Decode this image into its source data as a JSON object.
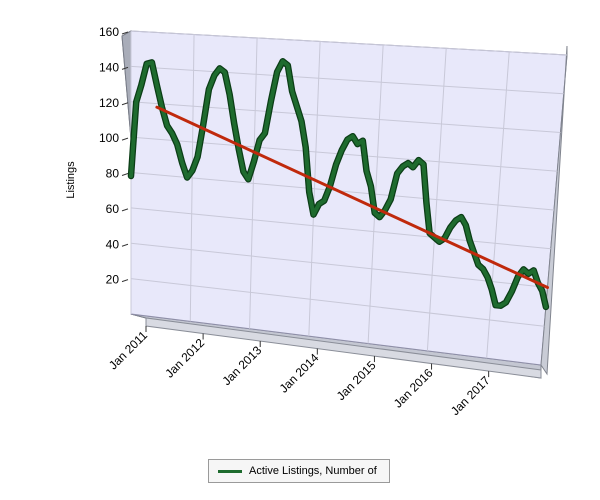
{
  "chart_data": {
    "type": "line",
    "title": "",
    "xlabel": "",
    "ylabel": "Listings",
    "ylim": [
      0,
      160
    ],
    "yticks": [
      20,
      40,
      60,
      80,
      100,
      120,
      140,
      160
    ],
    "x_start": "Jan 2011",
    "x_end": "Dec 2017",
    "xticks": [
      "Jan 2011",
      "Jan 2012",
      "Jan 2013",
      "Jan 2014",
      "Jan 2015",
      "Jan 2016",
      "Jan 2017"
    ],
    "grid": true,
    "three_d": true,
    "legend_position": "bottom",
    "series": [
      {
        "name": "Active Listings, Number of",
        "color": "#1e6b2e",
        "x": [
          "Jan 2011",
          "Feb 2011",
          "Mar 2011",
          "Apr 2011",
          "May 2011",
          "Jun 2011",
          "Jul 2011",
          "Aug 2011",
          "Sep 2011",
          "Oct 2011",
          "Nov 2011",
          "Dec 2011",
          "Jan 2012",
          "Feb 2012",
          "Mar 2012",
          "Apr 2012",
          "May 2012",
          "Jun 2012",
          "Jul 2012",
          "Aug 2012",
          "Sep 2012",
          "Oct 2012",
          "Nov 2012",
          "Dec 2012",
          "Jan 2013",
          "Feb 2013",
          "Mar 2013",
          "Apr 2013",
          "May 2013",
          "Jun 2013",
          "Jul 2013",
          "Aug 2013",
          "Sep 2013",
          "Oct 2013",
          "Nov 2013",
          "Dec 2013",
          "Jan 2014",
          "Feb 2014",
          "Mar 2014",
          "Apr 2014",
          "May 2014",
          "Jun 2014",
          "Jul 2014",
          "Aug 2014",
          "Sep 2014",
          "Oct 2014",
          "Nov 2014",
          "Dec 2014",
          "Jan 2015",
          "Feb 2015",
          "Mar 2015",
          "Apr 2015",
          "May 2015",
          "Jun 2015",
          "Jul 2015",
          "Aug 2015",
          "Sep 2015",
          "Oct 2015",
          "Nov 2015",
          "Dec 2015",
          "Jan 2016",
          "Feb 2016",
          "Mar 2016",
          "Apr 2016",
          "May 2016",
          "Jun 2016",
          "Jul 2016",
          "Aug 2016",
          "Sep 2016",
          "Oct 2016",
          "Nov 2016",
          "Dec 2016",
          "Jan 2017",
          "Feb 2017",
          "Mar 2017",
          "Apr 2017",
          "May 2017",
          "Jun 2017",
          "Jul 2017",
          "Aug 2017",
          "Sep 2017",
          "Oct 2017",
          "Nov 2017",
          "Dec 2017"
        ],
        "values": [
          78,
          120,
          130,
          142,
          143,
          130,
          118,
          108,
          104,
          98,
          88,
          80,
          84,
          92,
          110,
          130,
          138,
          142,
          140,
          128,
          112,
          98,
          86,
          82,
          92,
          104,
          108,
          126,
          142,
          148,
          146,
          132,
          124,
          116,
          102,
          78,
          66,
          72,
          74,
          82,
          94,
          102,
          108,
          110,
          106,
          108,
          92,
          84,
          70,
          68,
          72,
          78,
          92,
          96,
          98,
          96,
          100,
          98,
          78,
          62,
          60,
          58,
          60,
          66,
          70,
          72,
          68,
          60,
          54,
          48,
          46,
          42,
          36,
          28,
          28,
          30,
          36,
          44,
          48,
          46,
          48,
          42,
          38,
          30
        ]
      },
      {
        "name": "",
        "role": "trend",
        "color": "#c0290c",
        "x": [
          "Jun 2011",
          "Dec 2017"
        ],
        "values": [
          118,
          40
        ]
      }
    ]
  }
}
